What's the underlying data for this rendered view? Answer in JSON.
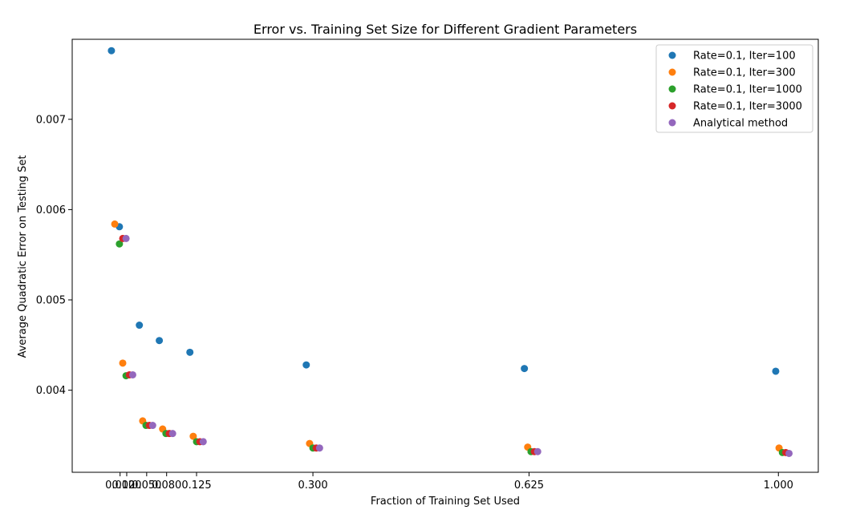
{
  "chart_data": {
    "type": "scatter",
    "title": "Error vs. Training Set Size for Different Gradient Parameters",
    "xlabel": "Fraction of Training Set Used",
    "ylabel": "Average Quadratic Error on Testing Set",
    "xlim": [
      -0.062,
      1.06
    ],
    "ylim": [
      0.003091,
      0.007886
    ],
    "grid": false,
    "legend_position": "top-right",
    "xticks": [
      {
        "value": 0.01,
        "label": "0.010"
      },
      {
        "value": 0.02,
        "label": "0.020"
      },
      {
        "value": 0.05,
        "label": "0.050"
      },
      {
        "value": 0.08,
        "label": "0.080"
      },
      {
        "value": 0.125,
        "label": "0.125"
      },
      {
        "value": 0.3,
        "label": "0.300"
      },
      {
        "value": 0.625,
        "label": "0.625"
      },
      {
        "value": 1.0,
        "label": "1.000"
      }
    ],
    "yticks": [
      {
        "value": 0.004,
        "label": "0.004"
      },
      {
        "value": 0.005,
        "label": "0.005"
      },
      {
        "value": 0.006,
        "label": "0.006"
      },
      {
        "value": 0.007,
        "label": "0.007"
      }
    ],
    "series": [
      {
        "name": "Rate=0.1, Iter=100",
        "color": "#1f77b4",
        "points": [
          [
            -0.003,
            0.00776
          ],
          [
            0.009,
            0.00581
          ],
          [
            0.039,
            0.00472
          ],
          [
            0.069,
            0.00455
          ],
          [
            0.115,
            0.00442
          ],
          [
            0.29,
            0.00428
          ],
          [
            0.618,
            0.00424
          ],
          [
            0.996,
            0.00421
          ]
        ]
      },
      {
        "name": "Rate=0.1, Iter=300",
        "color": "#ff7f0e",
        "points": [
          [
            0.002,
            0.00584
          ],
          [
            0.014,
            0.0043
          ],
          [
            0.044,
            0.00366
          ],
          [
            0.074,
            0.00357
          ],
          [
            0.12,
            0.00349
          ],
          [
            0.295,
            0.00341
          ],
          [
            0.623,
            0.00337
          ],
          [
            1.001,
            0.00336
          ]
        ]
      },
      {
        "name": "Rate=0.1, Iter=1000",
        "color": "#2ca02c",
        "points": [
          [
            0.009,
            0.00562
          ],
          [
            0.019,
            0.00416
          ],
          [
            0.049,
            0.00361
          ],
          [
            0.079,
            0.00352
          ],
          [
            0.125,
            0.00343
          ],
          [
            0.3,
            0.00336
          ],
          [
            0.628,
            0.00332
          ],
          [
            1.006,
            0.00331
          ]
        ]
      },
      {
        "name": "Rate=0.1, Iter=3000",
        "color": "#d62728",
        "points": [
          [
            0.014,
            0.00568
          ],
          [
            0.024,
            0.00417
          ],
          [
            0.054,
            0.00361
          ],
          [
            0.084,
            0.00352
          ],
          [
            0.13,
            0.00343
          ],
          [
            0.305,
            0.00336
          ],
          [
            0.633,
            0.00332
          ],
          [
            1.011,
            0.00331
          ]
        ]
      },
      {
        "name": "Analytical method",
        "color": "#9467bd",
        "points": [
          [
            0.019,
            0.00568
          ],
          [
            0.029,
            0.00417
          ],
          [
            0.059,
            0.00361
          ],
          [
            0.089,
            0.00352
          ],
          [
            0.135,
            0.00343
          ],
          [
            0.31,
            0.00336
          ],
          [
            0.638,
            0.00332
          ],
          [
            1.016,
            0.0033
          ]
        ]
      }
    ]
  }
}
